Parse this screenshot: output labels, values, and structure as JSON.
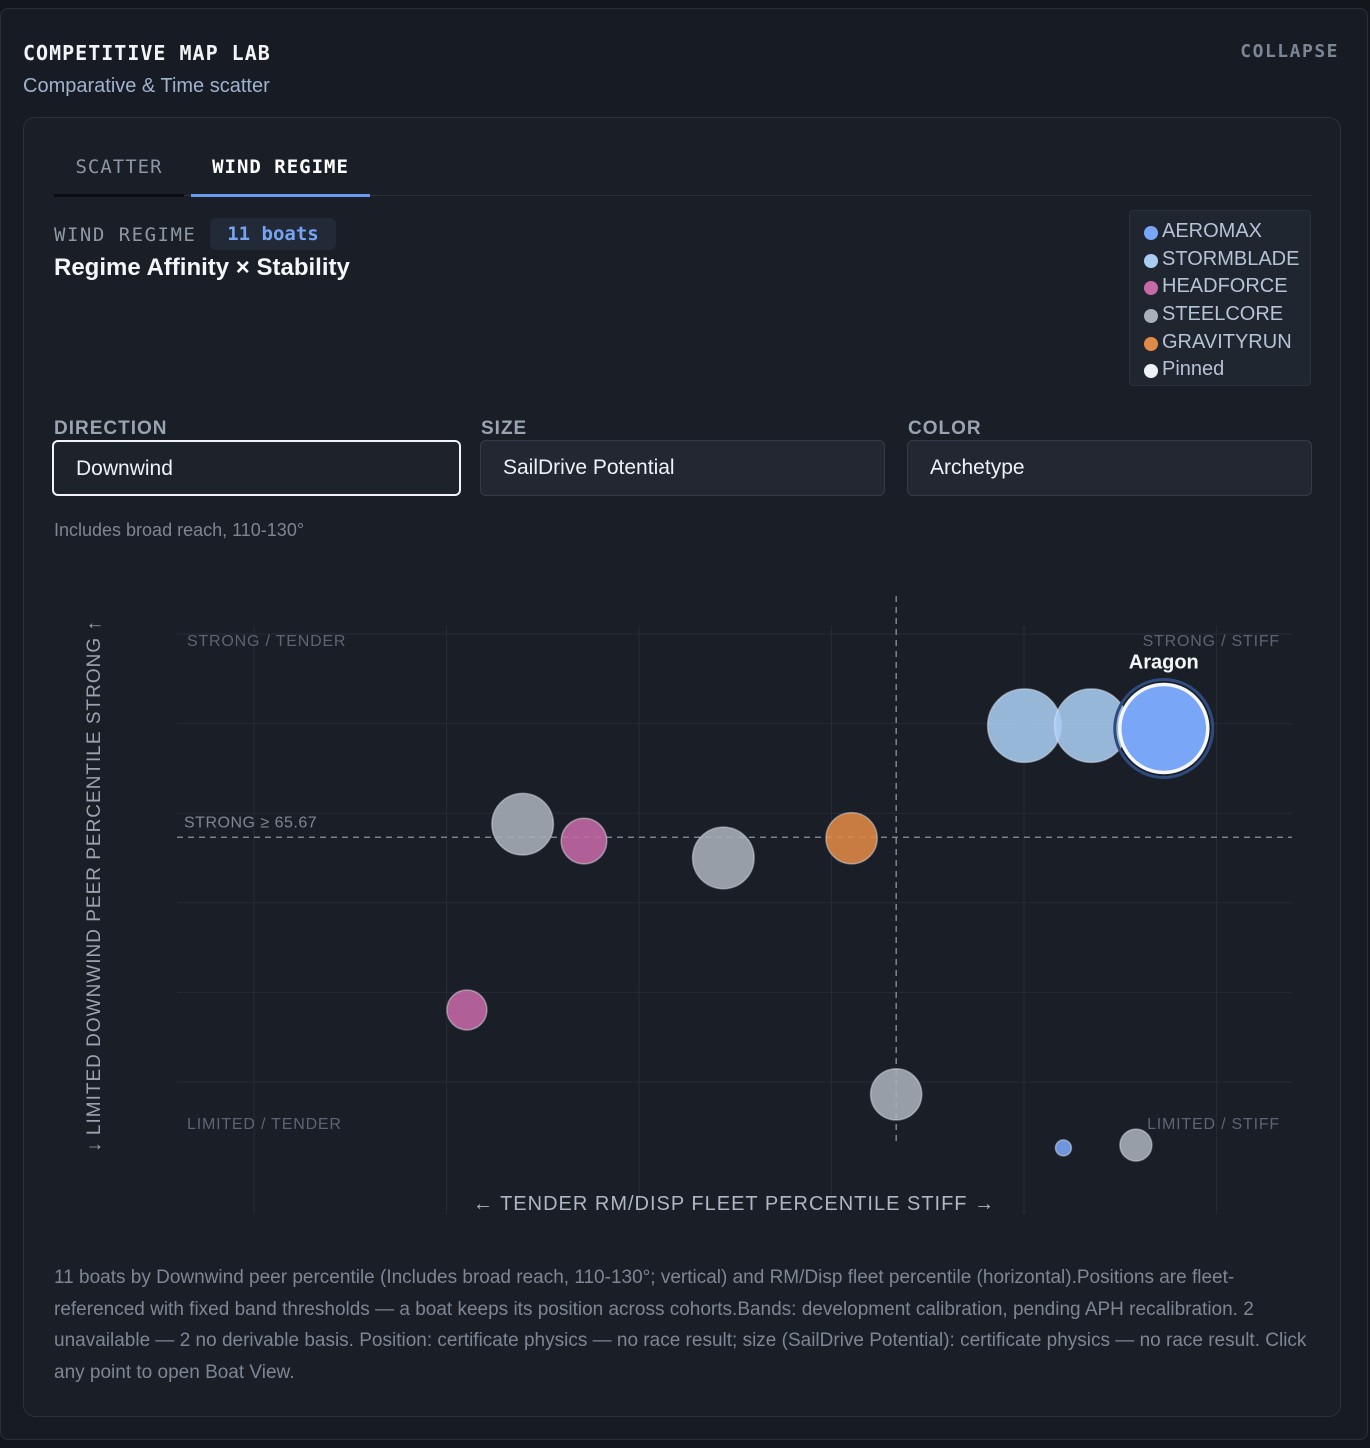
{
  "header": {
    "title": "COMPETITIVE MAP LAB",
    "subtitle": "Comparative & Time scatter",
    "collapse_label": "COLLAPSE"
  },
  "tabs": [
    {
      "label": "SCATTER",
      "active": false
    },
    {
      "label": "WIND REGIME",
      "active": true
    }
  ],
  "section": {
    "kicker": "WIND REGIME",
    "count_badge": "11 boats",
    "title": "Regime Affinity × Stability"
  },
  "legend": [
    {
      "label": "AEROMAX",
      "color": "#7aa6f7"
    },
    {
      "label": "STORMBLADE",
      "color": "#a9cdf2"
    },
    {
      "label": "HEADFORCE",
      "color": "#c56aa6"
    },
    {
      "label": "STEELCORE",
      "color": "#a9b0bb"
    },
    {
      "label": "GRAVITYRUN",
      "color": "#e08a47"
    },
    {
      "label": "Pinned",
      "color": "#eef1f6"
    }
  ],
  "controls": {
    "direction": {
      "label": "DIRECTION",
      "value": "Downwind"
    },
    "size": {
      "label": "SIZE",
      "value": "SailDrive Potential"
    },
    "color": {
      "label": "COLOR",
      "value": "Archetype"
    },
    "hint": "Includes broad reach, 110-130°"
  },
  "chart_data": {
    "type": "scatter",
    "xlabel": "← TENDER RM/DISP FLEET PERCENTILE STIFF →",
    "ylabel": "↓ LIMITED DOWNWIND PEER PERCENTILE STRONG ↑",
    "xlim": [
      0,
      100
    ],
    "ylim": [
      0,
      100
    ],
    "grid": true,
    "quadrants": {
      "top_left": "STRONG / TENDER",
      "top_right": "STRONG / STIFF",
      "bottom_left": "LIMITED / TENDER",
      "bottom_right": "LIMITED / STIFF"
    },
    "threshold_y": 65.67,
    "threshold_x": 64.5,
    "threshold_label": "STRONG ≥ 65.67",
    "points": [
      {
        "archetype": "AEROMAX",
        "x": 88.5,
        "y": 85,
        "size": 1.0,
        "pinned": true,
        "label": "Aragon"
      },
      {
        "archetype": "STORMBLADE",
        "x": 76,
        "y": 85.5,
        "size": 0.82,
        "pinned": false,
        "label": ""
      },
      {
        "archetype": "STORMBLADE",
        "x": 82,
        "y": 85.5,
        "size": 0.82,
        "pinned": false,
        "label": ""
      },
      {
        "archetype": "STEELCORE",
        "x": 31,
        "y": 68,
        "size": 0.67,
        "pinned": false,
        "label": ""
      },
      {
        "archetype": "HEADFORCE",
        "x": 36.5,
        "y": 65,
        "size": 0.47,
        "pinned": false,
        "label": ""
      },
      {
        "archetype": "STEELCORE",
        "x": 49,
        "y": 62,
        "size": 0.67,
        "pinned": false,
        "label": ""
      },
      {
        "archetype": "GRAVITYRUN",
        "x": 60.5,
        "y": 65.5,
        "size": 0.54,
        "pinned": false,
        "label": ""
      },
      {
        "archetype": "HEADFORCE",
        "x": 26,
        "y": 35,
        "size": 0.4,
        "pinned": false,
        "label": ""
      },
      {
        "archetype": "STEELCORE",
        "x": 64.5,
        "y": 20,
        "size": 0.54,
        "pinned": false,
        "label": ""
      },
      {
        "archetype": "AEROMAX",
        "x": 79.5,
        "y": 10.5,
        "size": 0.1,
        "pinned": false,
        "label": ""
      },
      {
        "archetype": "STEELCORE",
        "x": 86,
        "y": 11,
        "size": 0.3,
        "pinned": false,
        "label": ""
      }
    ]
  },
  "footnote": "11 boats by Downwind peer percentile (Includes broad reach, 110-130°; vertical) and RM/Disp fleet percentile (horizontal).Positions are fleet-referenced with fixed band thresholds — a boat keeps its position across cohorts.Bands: development calibration, pending APH recalibration. 2 unavailable — 2 no derivable basis. Position: certificate physics — no race result; size (SailDrive Potential): certificate physics — no race result. Click any point to open Boat View."
}
